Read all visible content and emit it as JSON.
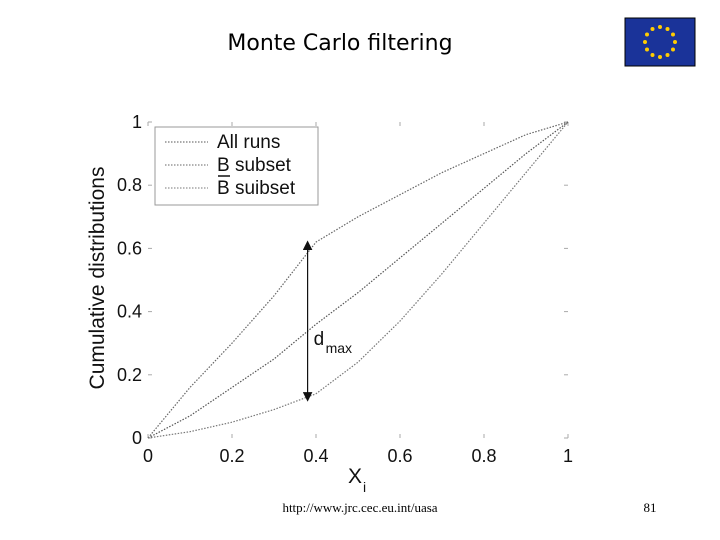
{
  "chart_data": {
    "type": "line",
    "title": "Monte Carlo filtering",
    "ylabel": "Cumulative distributions",
    "xlabel": "X",
    "xlabel_sub": "i",
    "x": [
      0,
      0.1,
      0.2,
      0.3,
      0.4,
      0.5,
      0.6,
      0.7,
      0.8,
      0.9,
      1
    ],
    "series": [
      {
        "name": "All runs",
        "color": "#555555",
        "values": [
          0,
          0.07,
          0.16,
          0.25,
          0.36,
          0.46,
          0.57,
          0.68,
          0.79,
          0.9,
          1
        ]
      },
      {
        "name": "B subset",
        "color": "#666666",
        "values": [
          0,
          0.16,
          0.3,
          0.45,
          0.62,
          0.7,
          0.77,
          0.84,
          0.9,
          0.96,
          1
        ]
      },
      {
        "name": "B suibset",
        "color": "#777777",
        "values": [
          0,
          0.02,
          0.05,
          0.09,
          0.14,
          0.24,
          0.37,
          0.52,
          0.68,
          0.84,
          1
        ]
      }
    ],
    "annotation": {
      "text": "d",
      "subscript": "max",
      "x": 0.38,
      "from": 0.13,
      "to": 0.61
    },
    "xlim": [
      0,
      1
    ],
    "ylim": [
      0,
      1
    ],
    "xticks": [
      0,
      0.2,
      0.4,
      0.6,
      0.8,
      1
    ],
    "yticks": [
      0,
      0.2,
      0.4,
      0.6,
      0.8,
      1
    ]
  },
  "footer": {
    "url": "http://www.jrc.cec.eu.int/uasa",
    "page": 81
  }
}
